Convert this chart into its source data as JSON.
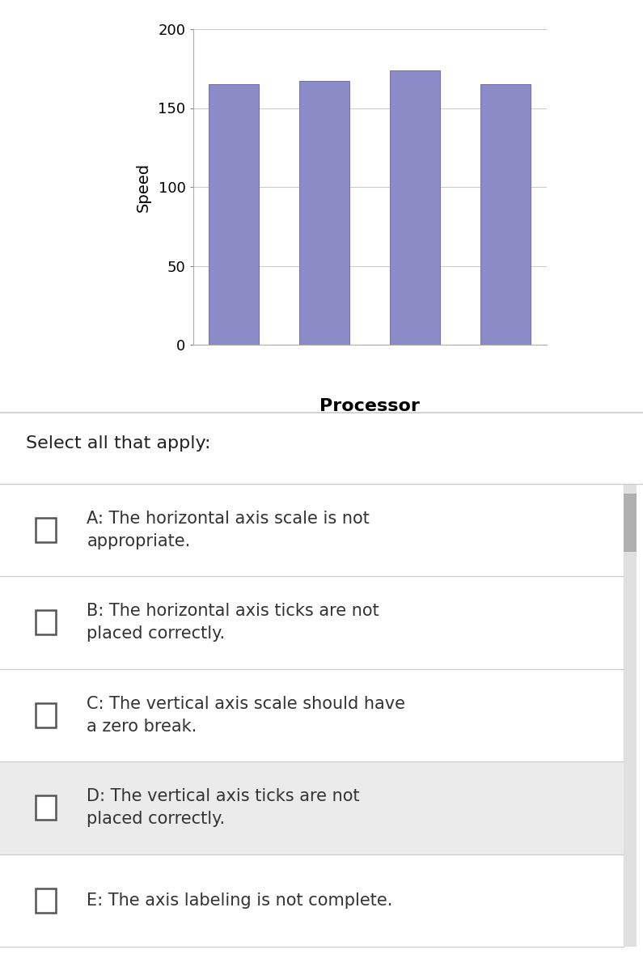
{
  "bar_values": [
    165,
    167,
    174,
    165
  ],
  "bar_color": "#8B8BC8",
  "bar_edge_color": "#7070a8",
  "ylim": [
    0,
    200
  ],
  "yticks": [
    0,
    50,
    100,
    150,
    200
  ],
  "ylabel": "Speed",
  "xlabel": "Processor",
  "bg_color": "#ffffff",
  "grid_color": "#cccccc",
  "options": [
    {
      "label": "A: The horizontal axis scale is not\nappropriate.",
      "row_bg": "#ffffff"
    },
    {
      "label": "B: The horizontal axis ticks are not\nplaced correctly.",
      "row_bg": "#ffffff"
    },
    {
      "label": "C: The vertical axis scale should have\na zero break.",
      "row_bg": "#ffffff"
    },
    {
      "label": "D: The vertical axis ticks are not\nplaced correctly.",
      "row_bg": "#ebebeb"
    },
    {
      "label": "E: The axis labeling is not complete.",
      "row_bg": "#ffffff"
    }
  ],
  "select_text": "Select all that apply:",
  "figsize": [
    7.95,
    12.0
  ],
  "dpi": 100
}
